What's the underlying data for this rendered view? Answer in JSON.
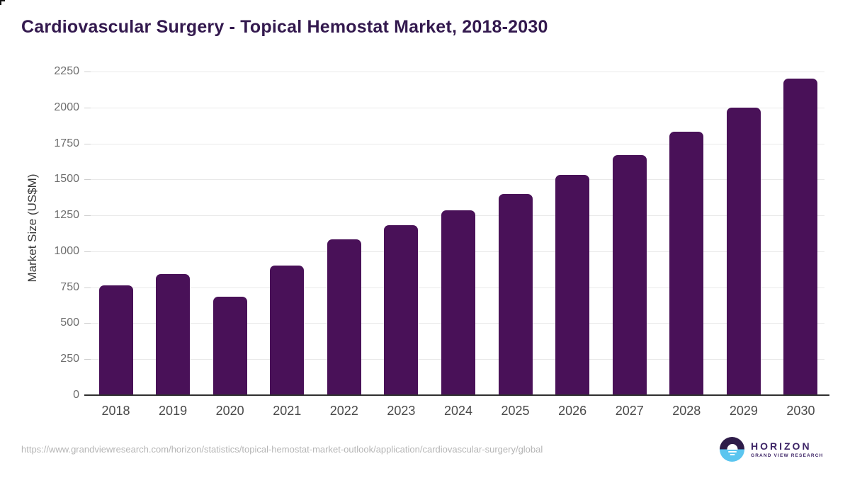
{
  "title": "Cardiovascular Surgery - Topical Hemostat Market, 2018-2030",
  "source_url": "https://www.grandviewresearch.com/horizon/statistics/topical-hemostat-market-outlook/application/cardiovascular-surgery/global",
  "logo": {
    "name": "HORIZON",
    "subtitle": "GRAND VIEW RESEARCH"
  },
  "colors": {
    "bar": "#491158",
    "title_text": "#33194e",
    "gridline": "#e9e9e9",
    "axis_line": "#2f2f2f",
    "y_tick_label": "#6e6e6e",
    "x_tick_label": "#4a4a4a",
    "url_text": "#b5b5b5",
    "logo_purple": "#2e1c49",
    "logo_blue": "#5bc5ef",
    "logo_text": "#3d2466"
  },
  "chart_data": {
    "type": "bar",
    "title": "Cardiovascular Surgery - Topical Hemostat Market, 2018-2030",
    "categories": [
      "2018",
      "2019",
      "2020",
      "2021",
      "2022",
      "2023",
      "2024",
      "2025",
      "2026",
      "2027",
      "2028",
      "2029",
      "2030"
    ],
    "values": [
      765,
      840,
      685,
      900,
      1085,
      1180,
      1285,
      1400,
      1530,
      1670,
      1830,
      2000,
      2200
    ],
    "xlabel": "",
    "ylabel": "Market Size (US$M)",
    "ylim": [
      0,
      2250
    ],
    "yticks": [
      0,
      250,
      500,
      750,
      1000,
      1250,
      1500,
      1750,
      2000,
      2250
    ],
    "grid": "horizontal-only",
    "legend": "none",
    "bar_corner_radius": "rounded-top"
  }
}
